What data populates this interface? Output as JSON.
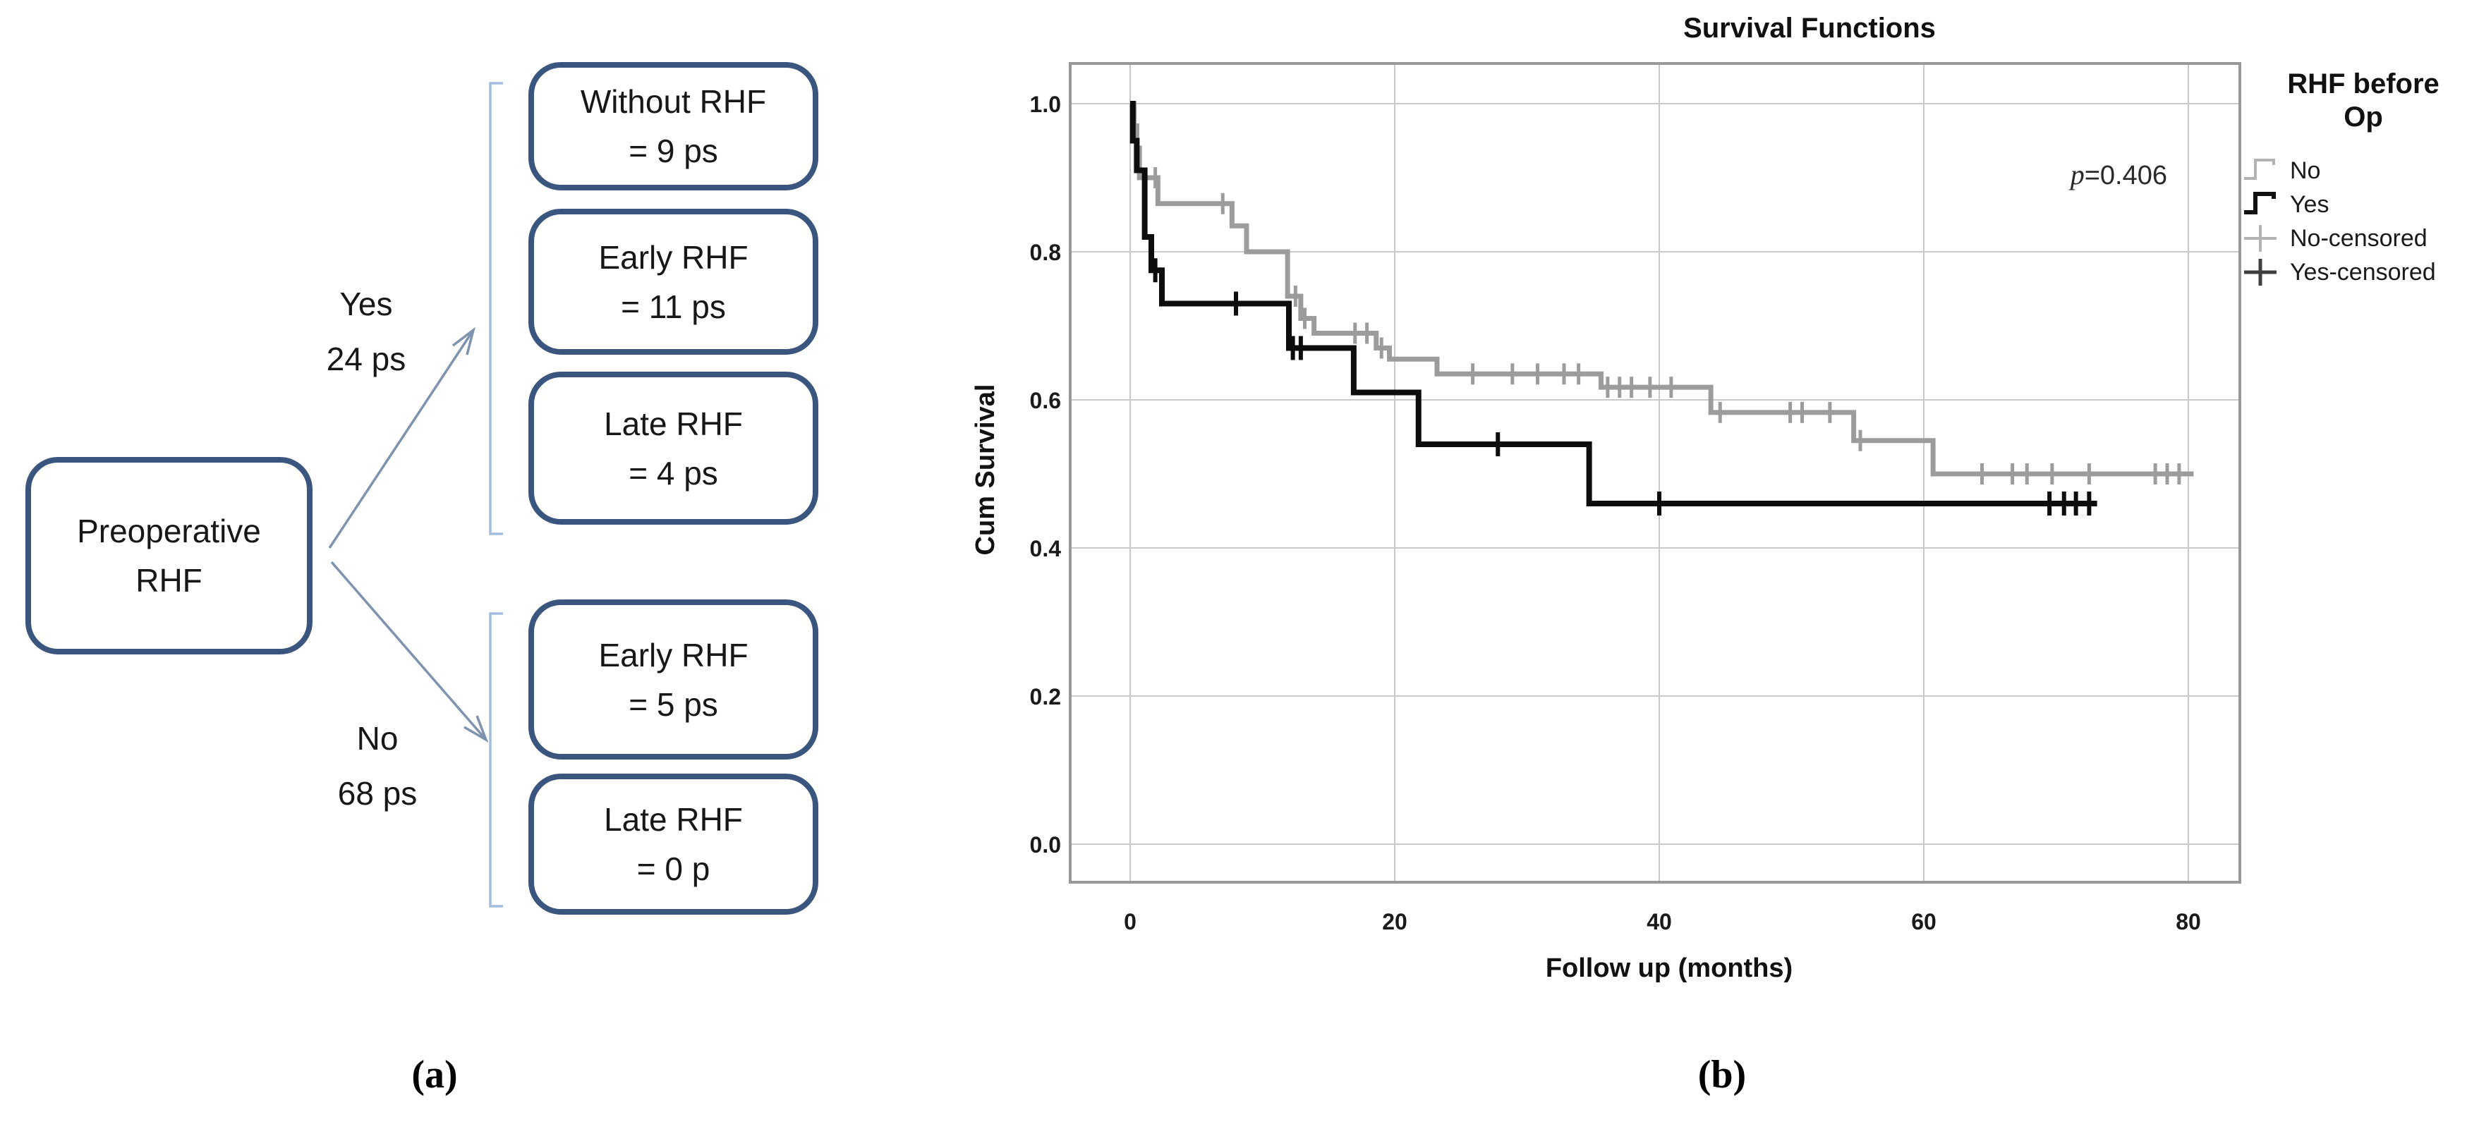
{
  "figure": {
    "panel_a_label": "(a)",
    "panel_b_label": "(b)"
  },
  "flowchart": {
    "root": {
      "line1": "Preoperative",
      "line2": "RHF"
    },
    "yes_label": {
      "line1": "Yes",
      "line2": "24 ps"
    },
    "no_label": {
      "line1": "No",
      "line2": "68 ps"
    },
    "yes_boxes": [
      {
        "line1": "Without RHF",
        "line2": "= 9 ps"
      },
      {
        "line1": "Early RHF",
        "line2": "= 11 ps"
      },
      {
        "line1": "Late RHF",
        "line2": "= 4 ps"
      }
    ],
    "no_boxes": [
      {
        "line1": "Early RHF",
        "line2": "= 5 ps"
      },
      {
        "line1": "Late RHF",
        "line2": "= 0 p"
      }
    ],
    "colors": {
      "box_border": "#3a567e",
      "arrow": "#7f93ae",
      "bracket": "#a3bedd",
      "text": "#171717"
    }
  },
  "chart_data": {
    "type": "line",
    "variant": "kaplan-meier-step",
    "title": "Survival Functions",
    "xlabel": "Follow up (months)",
    "ylabel": "Cum Survival",
    "xlim": [
      -4.5,
      84
    ],
    "ylim": [
      -0.05,
      1.05
    ],
    "xticks": [
      0,
      20,
      40,
      60,
      80
    ],
    "yticks": [
      "0.0",
      "0.2",
      "0.4",
      "0.6",
      "0.8",
      "1.0"
    ],
    "grid": true,
    "annotation": {
      "p_label": "p",
      "p_value": "=0.406"
    },
    "legend": {
      "position": "top-right",
      "title_line1": "RHF before",
      "title_line2": "Op",
      "entries": [
        {
          "label": "No",
          "type": "step",
          "color": "#b3b3b3",
          "lw": 4
        },
        {
          "label": "Yes",
          "type": "step",
          "color": "#111111",
          "lw": 6
        },
        {
          "label": "No-censored",
          "type": "censor",
          "color": "#b3b3b3",
          "lw": 4
        },
        {
          "label": "Yes-censored",
          "type": "censor",
          "color": "#3f3f3f",
          "lw": 5
        }
      ]
    },
    "colors": {
      "grid": "#c9c9c9",
      "frame": "#999999",
      "tick_text": "#1a1a1a"
    },
    "series": [
      {
        "name": "No",
        "color": "#9c9c9c",
        "width": 7,
        "tick": 15,
        "tick_w": 5,
        "steps": [
          [
            0,
            1.0
          ],
          [
            0.3,
            0.97
          ],
          [
            0.5,
            0.94
          ],
          [
            0.7,
            0.9
          ],
          [
            2.1,
            0.865
          ],
          [
            7.7,
            0.835
          ],
          [
            8.8,
            0.8
          ],
          [
            11.9,
            0.74
          ],
          [
            12.9,
            0.71
          ],
          [
            13.9,
            0.69
          ],
          [
            18.6,
            0.67
          ],
          [
            19.6,
            0.655
          ],
          [
            23.2,
            0.635
          ],
          [
            35.6,
            0.617
          ],
          [
            43.9,
            0.583
          ],
          [
            54.7,
            0.545
          ],
          [
            60.7,
            0.5
          ]
        ],
        "end": 80.4,
        "censors": [
          [
            1.9,
            0.9
          ],
          [
            7.0,
            0.865
          ],
          [
            12.5,
            0.74
          ],
          [
            13.2,
            0.71
          ],
          [
            17.0,
            0.69
          ],
          [
            17.9,
            0.69
          ],
          [
            19.0,
            0.67
          ],
          [
            25.9,
            0.635
          ],
          [
            28.9,
            0.635
          ],
          [
            30.8,
            0.635
          ],
          [
            32.8,
            0.635
          ],
          [
            33.9,
            0.635
          ],
          [
            36.1,
            0.617
          ],
          [
            37.0,
            0.617
          ],
          [
            37.9,
            0.617
          ],
          [
            39.3,
            0.617
          ],
          [
            40.9,
            0.617
          ],
          [
            44.6,
            0.583
          ],
          [
            49.9,
            0.583
          ],
          [
            50.8,
            0.583
          ],
          [
            52.9,
            0.583
          ],
          [
            55.2,
            0.545
          ],
          [
            64.4,
            0.5
          ],
          [
            66.7,
            0.5
          ],
          [
            67.8,
            0.5
          ],
          [
            69.7,
            0.5
          ],
          [
            72.5,
            0.5
          ],
          [
            77.5,
            0.5
          ],
          [
            78.4,
            0.5
          ],
          [
            79.3,
            0.5
          ]
        ]
      },
      {
        "name": "Yes",
        "color": "#0d0d0d",
        "width": 8,
        "tick": 17,
        "tick_w": 6,
        "steps": [
          [
            0,
            1.0
          ],
          [
            0.2,
            0.95
          ],
          [
            0.5,
            0.91
          ],
          [
            1.1,
            0.82
          ],
          [
            1.6,
            0.775
          ],
          [
            2.4,
            0.73
          ],
          [
            12.0,
            0.67
          ],
          [
            16.9,
            0.61
          ],
          [
            21.8,
            0.54
          ],
          [
            34.7,
            0.46
          ]
        ],
        "end": 73.1,
        "censors": [
          [
            1.9,
            0.775
          ],
          [
            8.0,
            0.73
          ],
          [
            12.3,
            0.67
          ],
          [
            12.9,
            0.67
          ],
          [
            27.8,
            0.54
          ],
          [
            40.0,
            0.46
          ],
          [
            69.5,
            0.46
          ],
          [
            70.6,
            0.46
          ],
          [
            71.5,
            0.46
          ],
          [
            72.5,
            0.46
          ]
        ]
      }
    ]
  }
}
